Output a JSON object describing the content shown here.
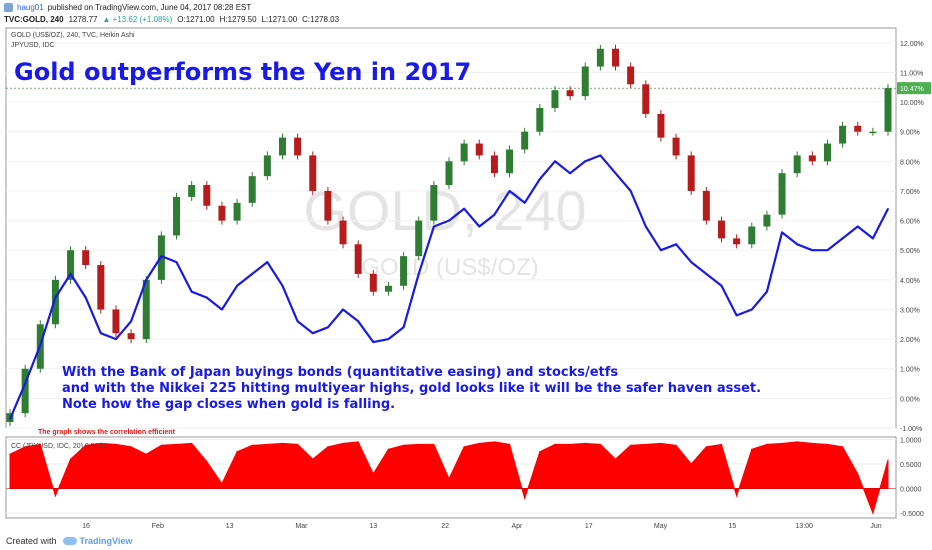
{
  "header": {
    "user": "haug01",
    "published": "published on TradingView.com, June 04, 2017 08:28 EST",
    "symbol": "TVC:GOLD, 240",
    "last": "1278.77",
    "change": "▲ +13.62 (+1.08%)",
    "open": "O:1271.00",
    "high": "H:1279.50",
    "low": "L:1271.00",
    "close": "C:1278.03"
  },
  "legend": {
    "main": "GOLD (US$/OZ), 240, TVC, Heikin Ashi",
    "overlay": "JPYUSD, IDC",
    "indicator": "CC (JPYUSD, IDC, 20) 0.5811"
  },
  "watermark": {
    "big": "GOLD, 240",
    "sub": "GOLD (US$/OZ)"
  },
  "annotations": {
    "title": "Gold outperforms the Yen in 2017",
    "note1": "With the Bank of Japan buyings bonds (quantitative easing) and stocks/etfs",
    "note2": "and with the Nikkei 225 hitting multiyear highs, gold looks like it will be the safer haven asset.",
    "note3": "Note how the gap closes when gold is falling.",
    "small": "The graph shows the correlation efficient"
  },
  "footer": {
    "created": "Created with",
    "brand": "TradingView"
  },
  "colors": {
    "gold_up": "#2e7d32",
    "gold_down": "#b71c1c",
    "jpy_line": "#1a1ae6",
    "cc_fill": "#ff0000",
    "title": "#1a1ae6"
  },
  "chart_data": [
    {
      "type": "line",
      "title": "GOLD (US$/OZ), 240, TVC, Heikin Ashi",
      "y_axis_side": "right",
      "ylim": [
        -1.0,
        12.5
      ],
      "y_ticks": [
        "-1.00%",
        "0.00%",
        "1.00%",
        "2.00%",
        "3.00%",
        "4.00%",
        "5.00%",
        "6.00%",
        "7.00%",
        "8.00%",
        "9.00%",
        "10.00%",
        "11.00%",
        "12.00%"
      ],
      "current_label": "10.47%",
      "x_tick_labels": [
        "16",
        "Feb",
        "13",
        "Mar",
        "13",
        "22",
        "Apr",
        "17",
        "May",
        "15",
        "13:00",
        "Jun"
      ],
      "series": [
        {
          "name": "GOLD (US$/OZ)",
          "style": "heikin-ashi",
          "values": [
            -0.5,
            1.0,
            2.5,
            4.0,
            5.0,
            4.5,
            3.0,
            2.2,
            2.0,
            4.0,
            5.5,
            6.8,
            7.2,
            6.5,
            6.0,
            6.6,
            7.5,
            8.2,
            8.8,
            8.2,
            7.0,
            6.0,
            5.2,
            4.2,
            3.6,
            3.8,
            4.8,
            6.0,
            7.2,
            8.0,
            8.6,
            8.2,
            7.6,
            8.4,
            9.0,
            9.8,
            10.4,
            10.2,
            11.2,
            11.8,
            11.2,
            10.6,
            9.6,
            8.8,
            8.2,
            7.0,
            6.0,
            5.4,
            5.2,
            5.8,
            6.2,
            7.6,
            8.2,
            8.0,
            8.6,
            9.2,
            9.0,
            9.0,
            10.47
          ]
        },
        {
          "name": "JPYUSD, IDC",
          "style": "line",
          "values": [
            -0.7,
            0.5,
            1.8,
            3.4,
            4.2,
            3.4,
            2.2,
            2.0,
            2.6,
            4.0,
            4.8,
            4.6,
            3.6,
            3.4,
            3.0,
            3.8,
            4.2,
            4.6,
            3.8,
            2.6,
            2.2,
            2.4,
            3.0,
            2.6,
            1.9,
            2.0,
            2.4,
            4.2,
            5.8,
            6.0,
            6.4,
            5.8,
            6.2,
            7.0,
            6.6,
            7.4,
            8.0,
            7.6,
            8.0,
            8.2,
            7.6,
            7.0,
            5.8,
            5.0,
            5.2,
            4.6,
            4.2,
            3.8,
            2.8,
            3.0,
            3.6,
            5.6,
            5.2,
            5.0,
            5.0,
            5.4,
            5.8,
            5.4,
            6.4
          ]
        }
      ]
    },
    {
      "type": "area",
      "title": "CC (JPYUSD, IDC, 20) 0.5811",
      "ylim": [
        -0.6,
        1.05
      ],
      "y_ticks": [
        "1.0000",
        "0.5000",
        "0.0000",
        "-0.5000"
      ],
      "current_value": 0.5811,
      "series": [
        {
          "name": "CC (JPYUSD, IDC, 20)",
          "values": [
            0.7,
            0.85,
            0.9,
            -0.15,
            0.6,
            0.88,
            0.92,
            0.9,
            0.85,
            0.7,
            0.88,
            0.9,
            0.92,
            0.55,
            0.1,
            0.75,
            0.88,
            0.9,
            0.92,
            0.9,
            0.6,
            0.85,
            0.92,
            0.95,
            0.3,
            0.8,
            0.88,
            0.9,
            0.9,
            0.2,
            0.85,
            0.92,
            0.95,
            0.9,
            -0.2,
            0.75,
            0.9,
            0.9,
            0.92,
            0.9,
            0.6,
            0.88,
            0.9,
            0.92,
            0.88,
            0.5,
            0.85,
            0.9,
            -0.15,
            0.8,
            0.9,
            0.92,
            0.95,
            0.92,
            0.9,
            0.85,
            0.3,
            -0.5,
            0.5811
          ]
        }
      ]
    }
  ]
}
